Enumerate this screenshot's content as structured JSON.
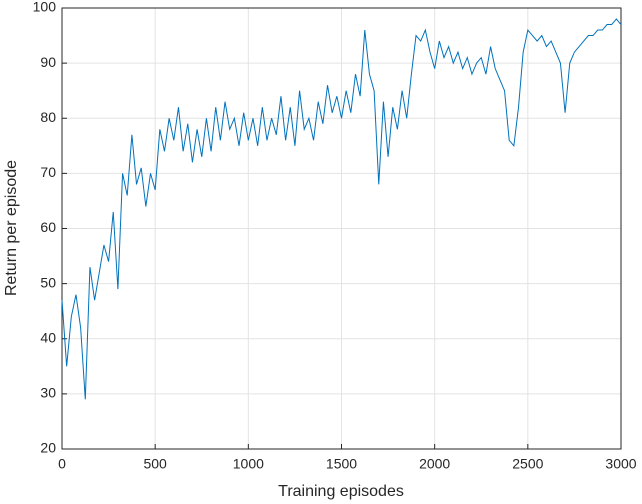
{
  "chart_data": {
    "type": "line",
    "xlabel": "Training episodes",
    "ylabel": "Return per episode",
    "x": [
      0,
      25,
      50,
      75,
      100,
      125,
      150,
      175,
      200,
      225,
      250,
      275,
      300,
      325,
      350,
      375,
      400,
      425,
      450,
      475,
      500,
      525,
      550,
      575,
      600,
      625,
      650,
      675,
      700,
      725,
      750,
      775,
      800,
      825,
      850,
      875,
      900,
      925,
      950,
      975,
      1000,
      1025,
      1050,
      1075,
      1100,
      1125,
      1150,
      1175,
      1200,
      1225,
      1250,
      1275,
      1300,
      1325,
      1350,
      1375,
      1400,
      1425,
      1450,
      1475,
      1500,
      1525,
      1550,
      1575,
      1600,
      1625,
      1650,
      1675,
      1700,
      1725,
      1750,
      1775,
      1800,
      1825,
      1850,
      1875,
      1900,
      1925,
      1950,
      1975,
      2000,
      2025,
      2050,
      2075,
      2100,
      2125,
      2150,
      2175,
      2200,
      2225,
      2250,
      2275,
      2300,
      2325,
      2350,
      2375,
      2400,
      2425,
      2450,
      2475,
      2500,
      2525,
      2550,
      2575,
      2600,
      2625,
      2650,
      2675,
      2700,
      2725,
      2750,
      2775,
      2800,
      2825,
      2850,
      2875,
      2900,
      2925,
      2950,
      2975,
      3000
    ],
    "series": [
      {
        "color": "#0072BD",
        "values": [
          47,
          35,
          44,
          48,
          42,
          29,
          53,
          47,
          52,
          57,
          54,
          63,
          49,
          70,
          66,
          77,
          68,
          71,
          64,
          70,
          67,
          78,
          74,
          80,
          76,
          82,
          74,
          79,
          72,
          78,
          73,
          80,
          74,
          82,
          76,
          83,
          78,
          80,
          75,
          81,
          76,
          80,
          75,
          82,
          76,
          80,
          77,
          84,
          76,
          82,
          75,
          85,
          78,
          80,
          76,
          83,
          79,
          86,
          81,
          84,
          80,
          85,
          81,
          88,
          84,
          96,
          88,
          85,
          68,
          83,
          73,
          82,
          78,
          85,
          80,
          88,
          95,
          94,
          96,
          92,
          89,
          94,
          91,
          93,
          90,
          92,
          89,
          91,
          88,
          90,
          91,
          88,
          93,
          89,
          87,
          85,
          76,
          75,
          82,
          92,
          96,
          95,
          94,
          95,
          93,
          94,
          92,
          90,
          81,
          90,
          92,
          93,
          94,
          95,
          95,
          96,
          96,
          97,
          97,
          98,
          97
        ]
      }
    ],
    "xlim": [
      0,
      3000
    ],
    "xticks": [
      0,
      500,
      1000,
      1500,
      2000,
      2500,
      3000
    ],
    "ylim": [
      20,
      100
    ],
    "yticks": [
      20,
      30,
      40,
      50,
      60,
      70,
      80,
      90,
      100
    ],
    "grid": true
  }
}
